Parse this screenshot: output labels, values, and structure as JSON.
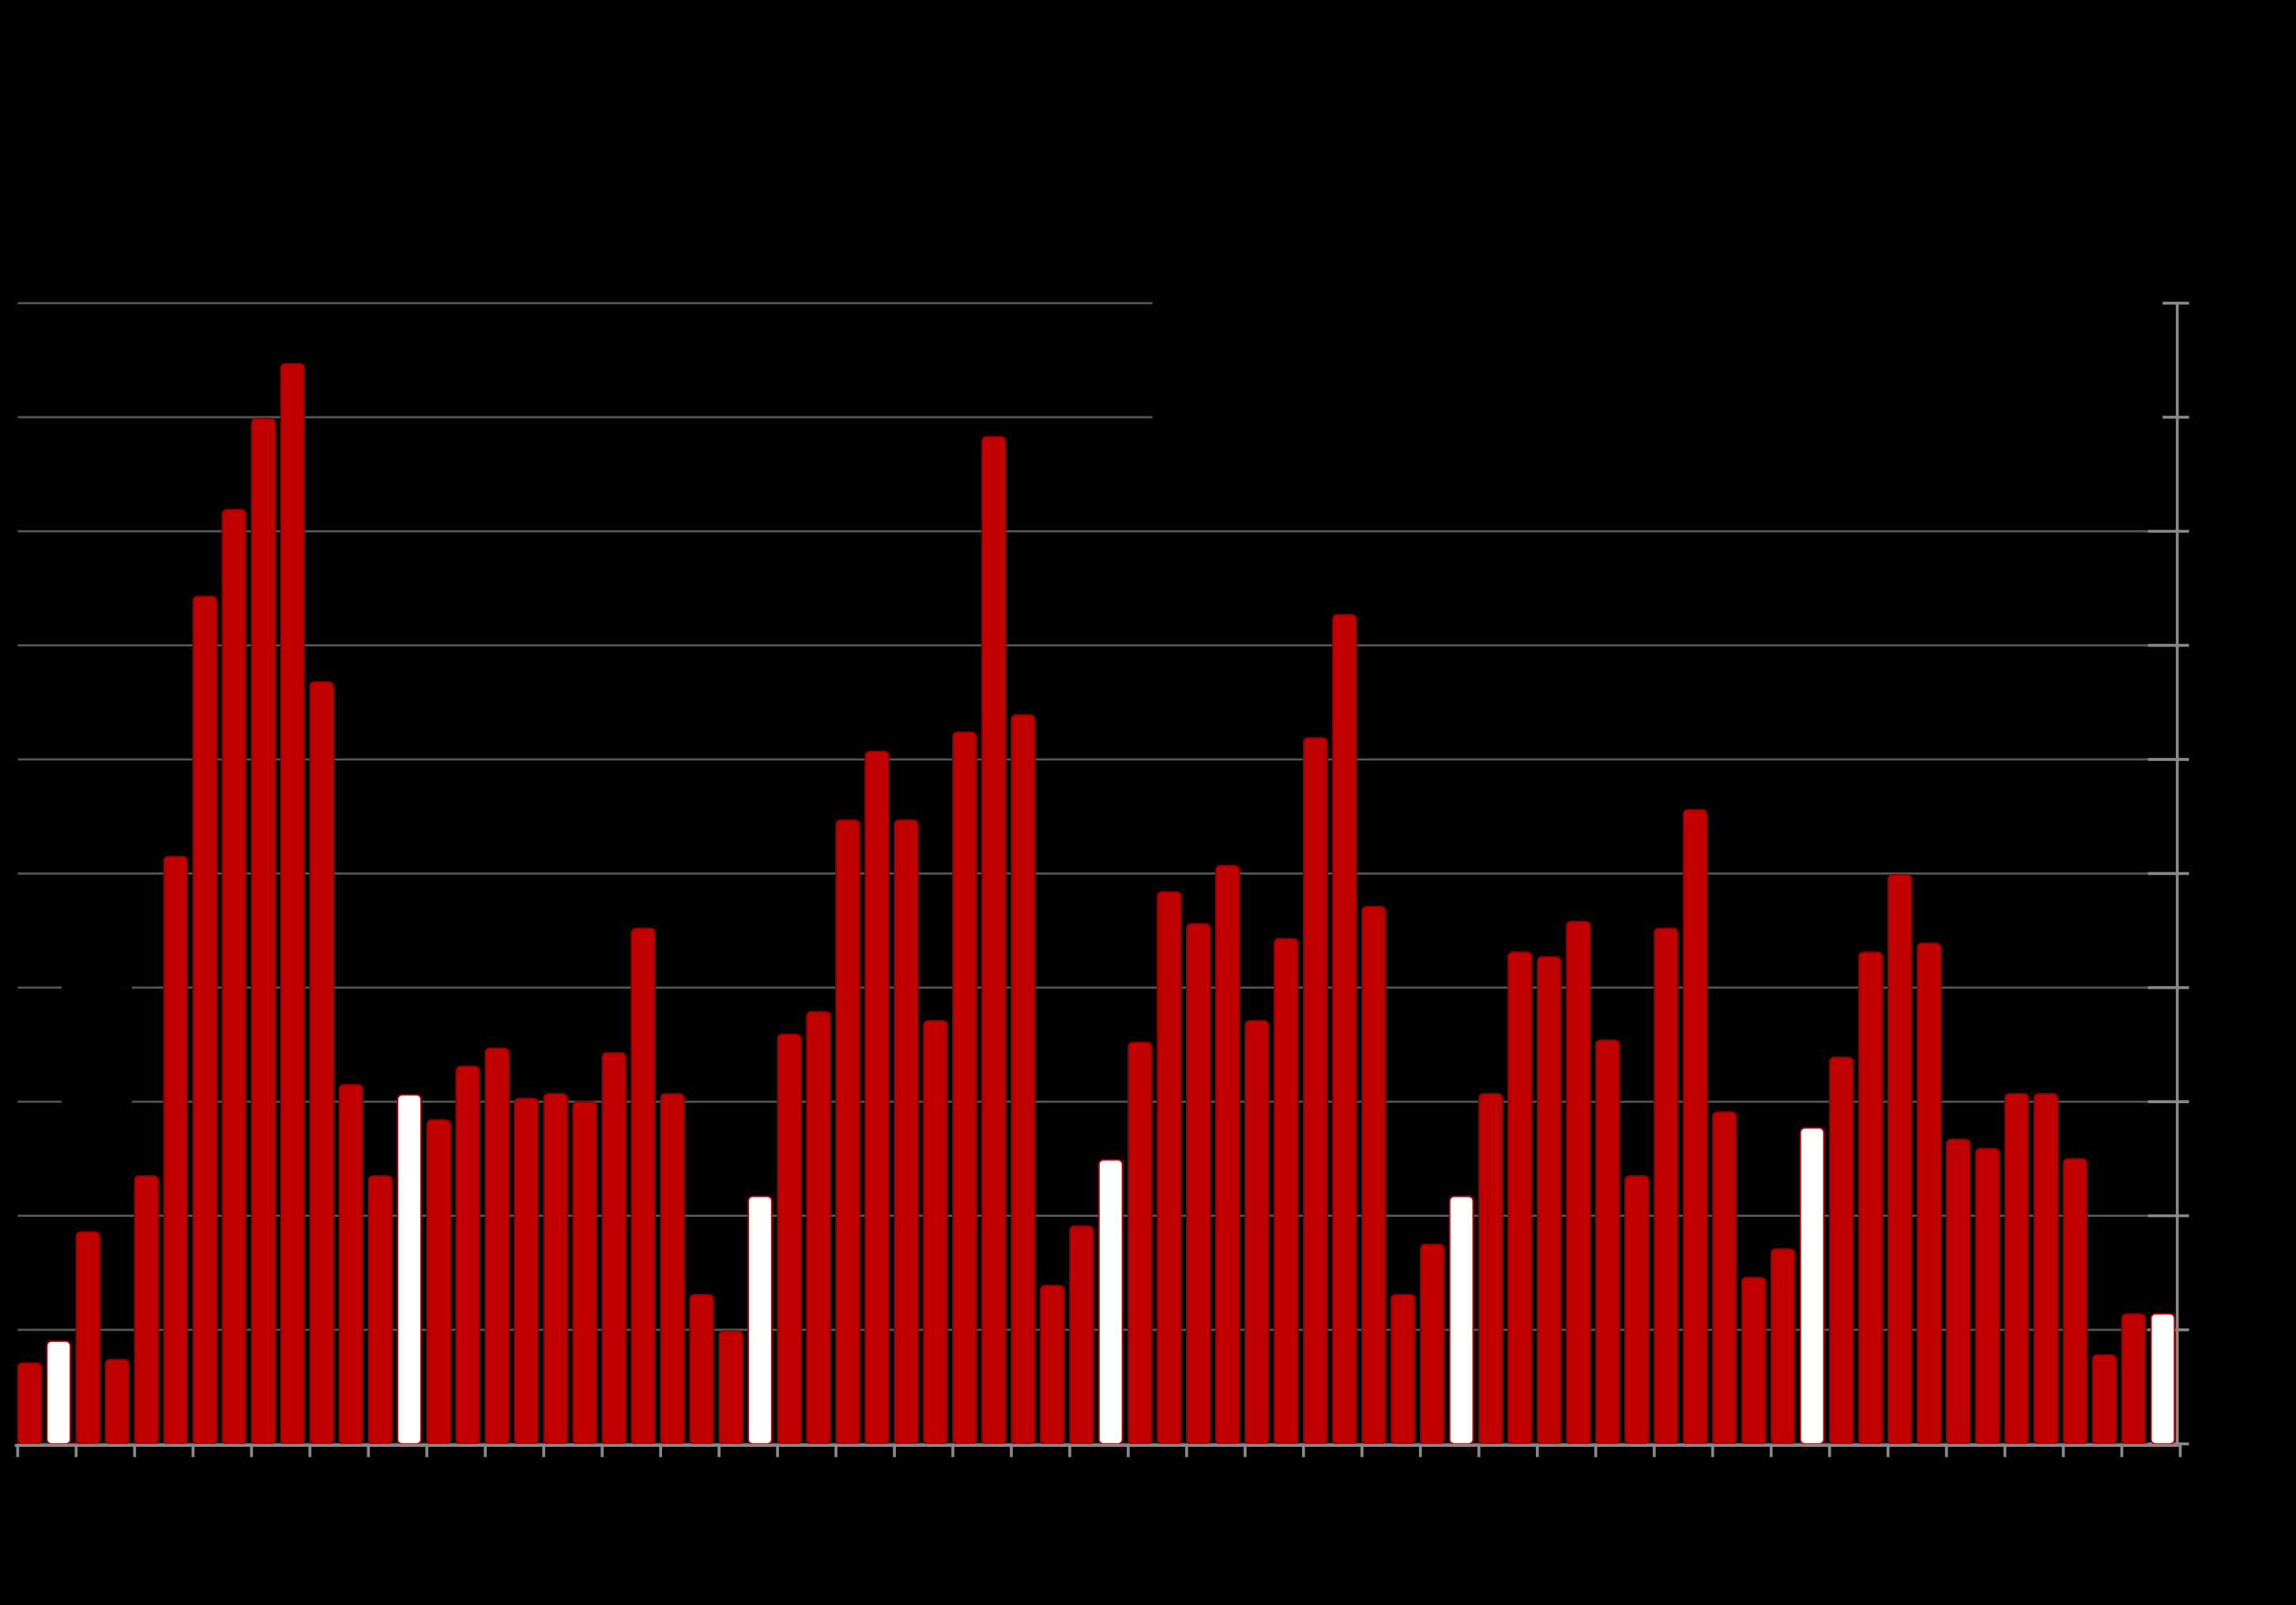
{
  "chart_data": {
    "type": "bar",
    "values": [
      7.1,
      9.0,
      18.6,
      7.4,
      23.5,
      51.5,
      74.3,
      81.9,
      89.9,
      94.7,
      66.8,
      31.5,
      23.5,
      30.6,
      28.4,
      33.1,
      34.7,
      30.3,
      30.7,
      30.0,
      34.3,
      45.2,
      30.7,
      13.1,
      9.9,
      21.7,
      35.9,
      37.9,
      54.7,
      60.7,
      54.7,
      37.1,
      62.4,
      88.3,
      63.9,
      13.9,
      19.1,
      24.9,
      35.2,
      48.4,
      45.6,
      50.7,
      37.1,
      44.3,
      61.9,
      72.7,
      47.1,
      13.1,
      17.5,
      21.7,
      30.7,
      43.1,
      42.7,
      45.8,
      35.4,
      23.5,
      45.2,
      55.6,
      29.1,
      14.6,
      17.1,
      27.7,
      33.9,
      43.1,
      49.9,
      43.9,
      26.7,
      25.9,
      30.7,
      30.7,
      25.0,
      7.8,
      11.4,
      11.4
    ],
    "colors": [
      "#c00000",
      "#ffffff",
      "#c00000",
      "#c00000",
      "#c00000",
      "#c00000",
      "#c00000",
      "#c00000",
      "#c00000",
      "#c00000",
      "#c00000",
      "#c00000",
      "#c00000",
      "#ffffff",
      "#c00000",
      "#c00000",
      "#c00000",
      "#c00000",
      "#c00000",
      "#c00000",
      "#c00000",
      "#c00000",
      "#c00000",
      "#c00000",
      "#c00000",
      "#ffffff",
      "#c00000",
      "#c00000",
      "#c00000",
      "#c00000",
      "#c00000",
      "#c00000",
      "#c00000",
      "#c00000",
      "#c00000",
      "#c00000",
      "#c00000",
      "#ffffff",
      "#c00000",
      "#c00000",
      "#c00000",
      "#c00000",
      "#c00000",
      "#c00000",
      "#c00000",
      "#c00000",
      "#c00000",
      "#c00000",
      "#c00000",
      "#ffffff",
      "#c00000",
      "#c00000",
      "#c00000",
      "#c00000",
      "#c00000",
      "#c00000",
      "#c00000",
      "#c00000",
      "#c00000",
      "#c00000",
      "#c00000",
      "#ffffff",
      "#c00000",
      "#c00000",
      "#c00000",
      "#c00000",
      "#c00000",
      "#c00000",
      "#c00000",
      "#c00000",
      "#c00000",
      "#c00000",
      "#c00000",
      "#ffffff"
    ],
    "ylim": [
      0,
      100
    ],
    "yticks": [
      0,
      10,
      20,
      30,
      40,
      50,
      60,
      70,
      80,
      90,
      100
    ],
    "grid": true
  }
}
